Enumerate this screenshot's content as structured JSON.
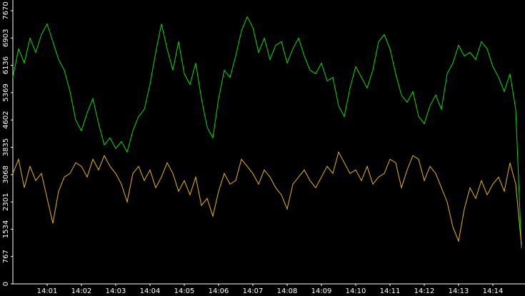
{
  "chart_data": {
    "type": "line",
    "categories": [
      null,
      null,
      null,
      null,
      null,
      null,
      "14:01",
      null,
      null,
      null,
      null,
      null,
      "14:02",
      null,
      null,
      null,
      null,
      null,
      "14:03",
      null,
      null,
      null,
      null,
      null,
      "14:04",
      null,
      null,
      null,
      null,
      null,
      "14:05",
      null,
      null,
      null,
      null,
      null,
      "14:06",
      null,
      null,
      null,
      null,
      null,
      "14:07",
      null,
      null,
      null,
      null,
      null,
      "14:08",
      null,
      null,
      null,
      null,
      null,
      "14:09",
      null,
      null,
      null,
      null,
      null,
      "14:10",
      null,
      null,
      null,
      null,
      null,
      "14:11",
      null,
      null,
      null,
      null,
      null,
      "14:12",
      null,
      null,
      null,
      null,
      null,
      "14:13",
      null,
      null,
      null,
      null,
      null,
      "14:14",
      null,
      null,
      null,
      null,
      null
    ],
    "series": [
      {
        "color": "#00e000",
        "values": [
          5800,
          6600,
          6200,
          6900,
          6500,
          7000,
          7300,
          6800,
          6300,
          6000,
          5400,
          4600,
          4300,
          4800,
          5200,
          4500,
          3900,
          4100,
          3800,
          4000,
          3700,
          4300,
          4700,
          4900,
          5600,
          6500,
          7300,
          6600,
          6000,
          6800,
          5900,
          5600,
          6200,
          5200,
          4400,
          4100,
          5200,
          6000,
          5800,
          6400,
          7100,
          7500,
          7200,
          6500,
          6900,
          6300,
          6700,
          6800,
          6200,
          6600,
          6900,
          6400,
          6000,
          5900,
          6200,
          5700,
          5800,
          5000,
          4700,
          5500,
          6100,
          5800,
          5500,
          6000,
          6800,
          7000,
          6600,
          5900,
          5300,
          5100,
          5400,
          4700,
          4500,
          5000,
          5300,
          4900,
          5900,
          6200,
          6700,
          6400,
          6500,
          6300,
          6800,
          6600,
          6100,
          5800,
          5400,
          5900,
          4900,
          1000
        ]
      },
      {
        "color": "#e8b800",
        "values": [
          3100,
          3500,
          2700,
          3300,
          2900,
          3100,
          2400,
          1700,
          2600,
          3000,
          3100,
          3400,
          3300,
          3000,
          3500,
          3200,
          3600,
          3300,
          3100,
          2800,
          2300,
          3100,
          3300,
          2900,
          3200,
          2700,
          3000,
          3400,
          3100,
          2600,
          2900,
          2500,
          3000,
          2200,
          2400,
          1900,
          2600,
          3100,
          2800,
          2900,
          3500,
          3300,
          3100,
          2800,
          3200,
          3000,
          2700,
          2500,
          2100,
          2800,
          3000,
          3200,
          2900,
          2700,
          3000,
          3300,
          3100,
          3700,
          3400,
          3100,
          3200,
          2900,
          3300,
          2800,
          3000,
          3100,
          3500,
          3400,
          2700,
          3200,
          3600,
          3500,
          2900,
          3300,
          3100,
          2700,
          2300,
          1600,
          1200,
          2100,
          2700,
          2400,
          2900,
          2500,
          2800,
          3000,
          2600,
          3400,
          2800,
          1100
        ]
      }
    ],
    "ylim": [
      0,
      7970
    ],
    "yticks": [
      0,
      767,
      1534,
      2301,
      3068,
      3835,
      4602,
      5369,
      6136,
      6903,
      7670
    ]
  }
}
